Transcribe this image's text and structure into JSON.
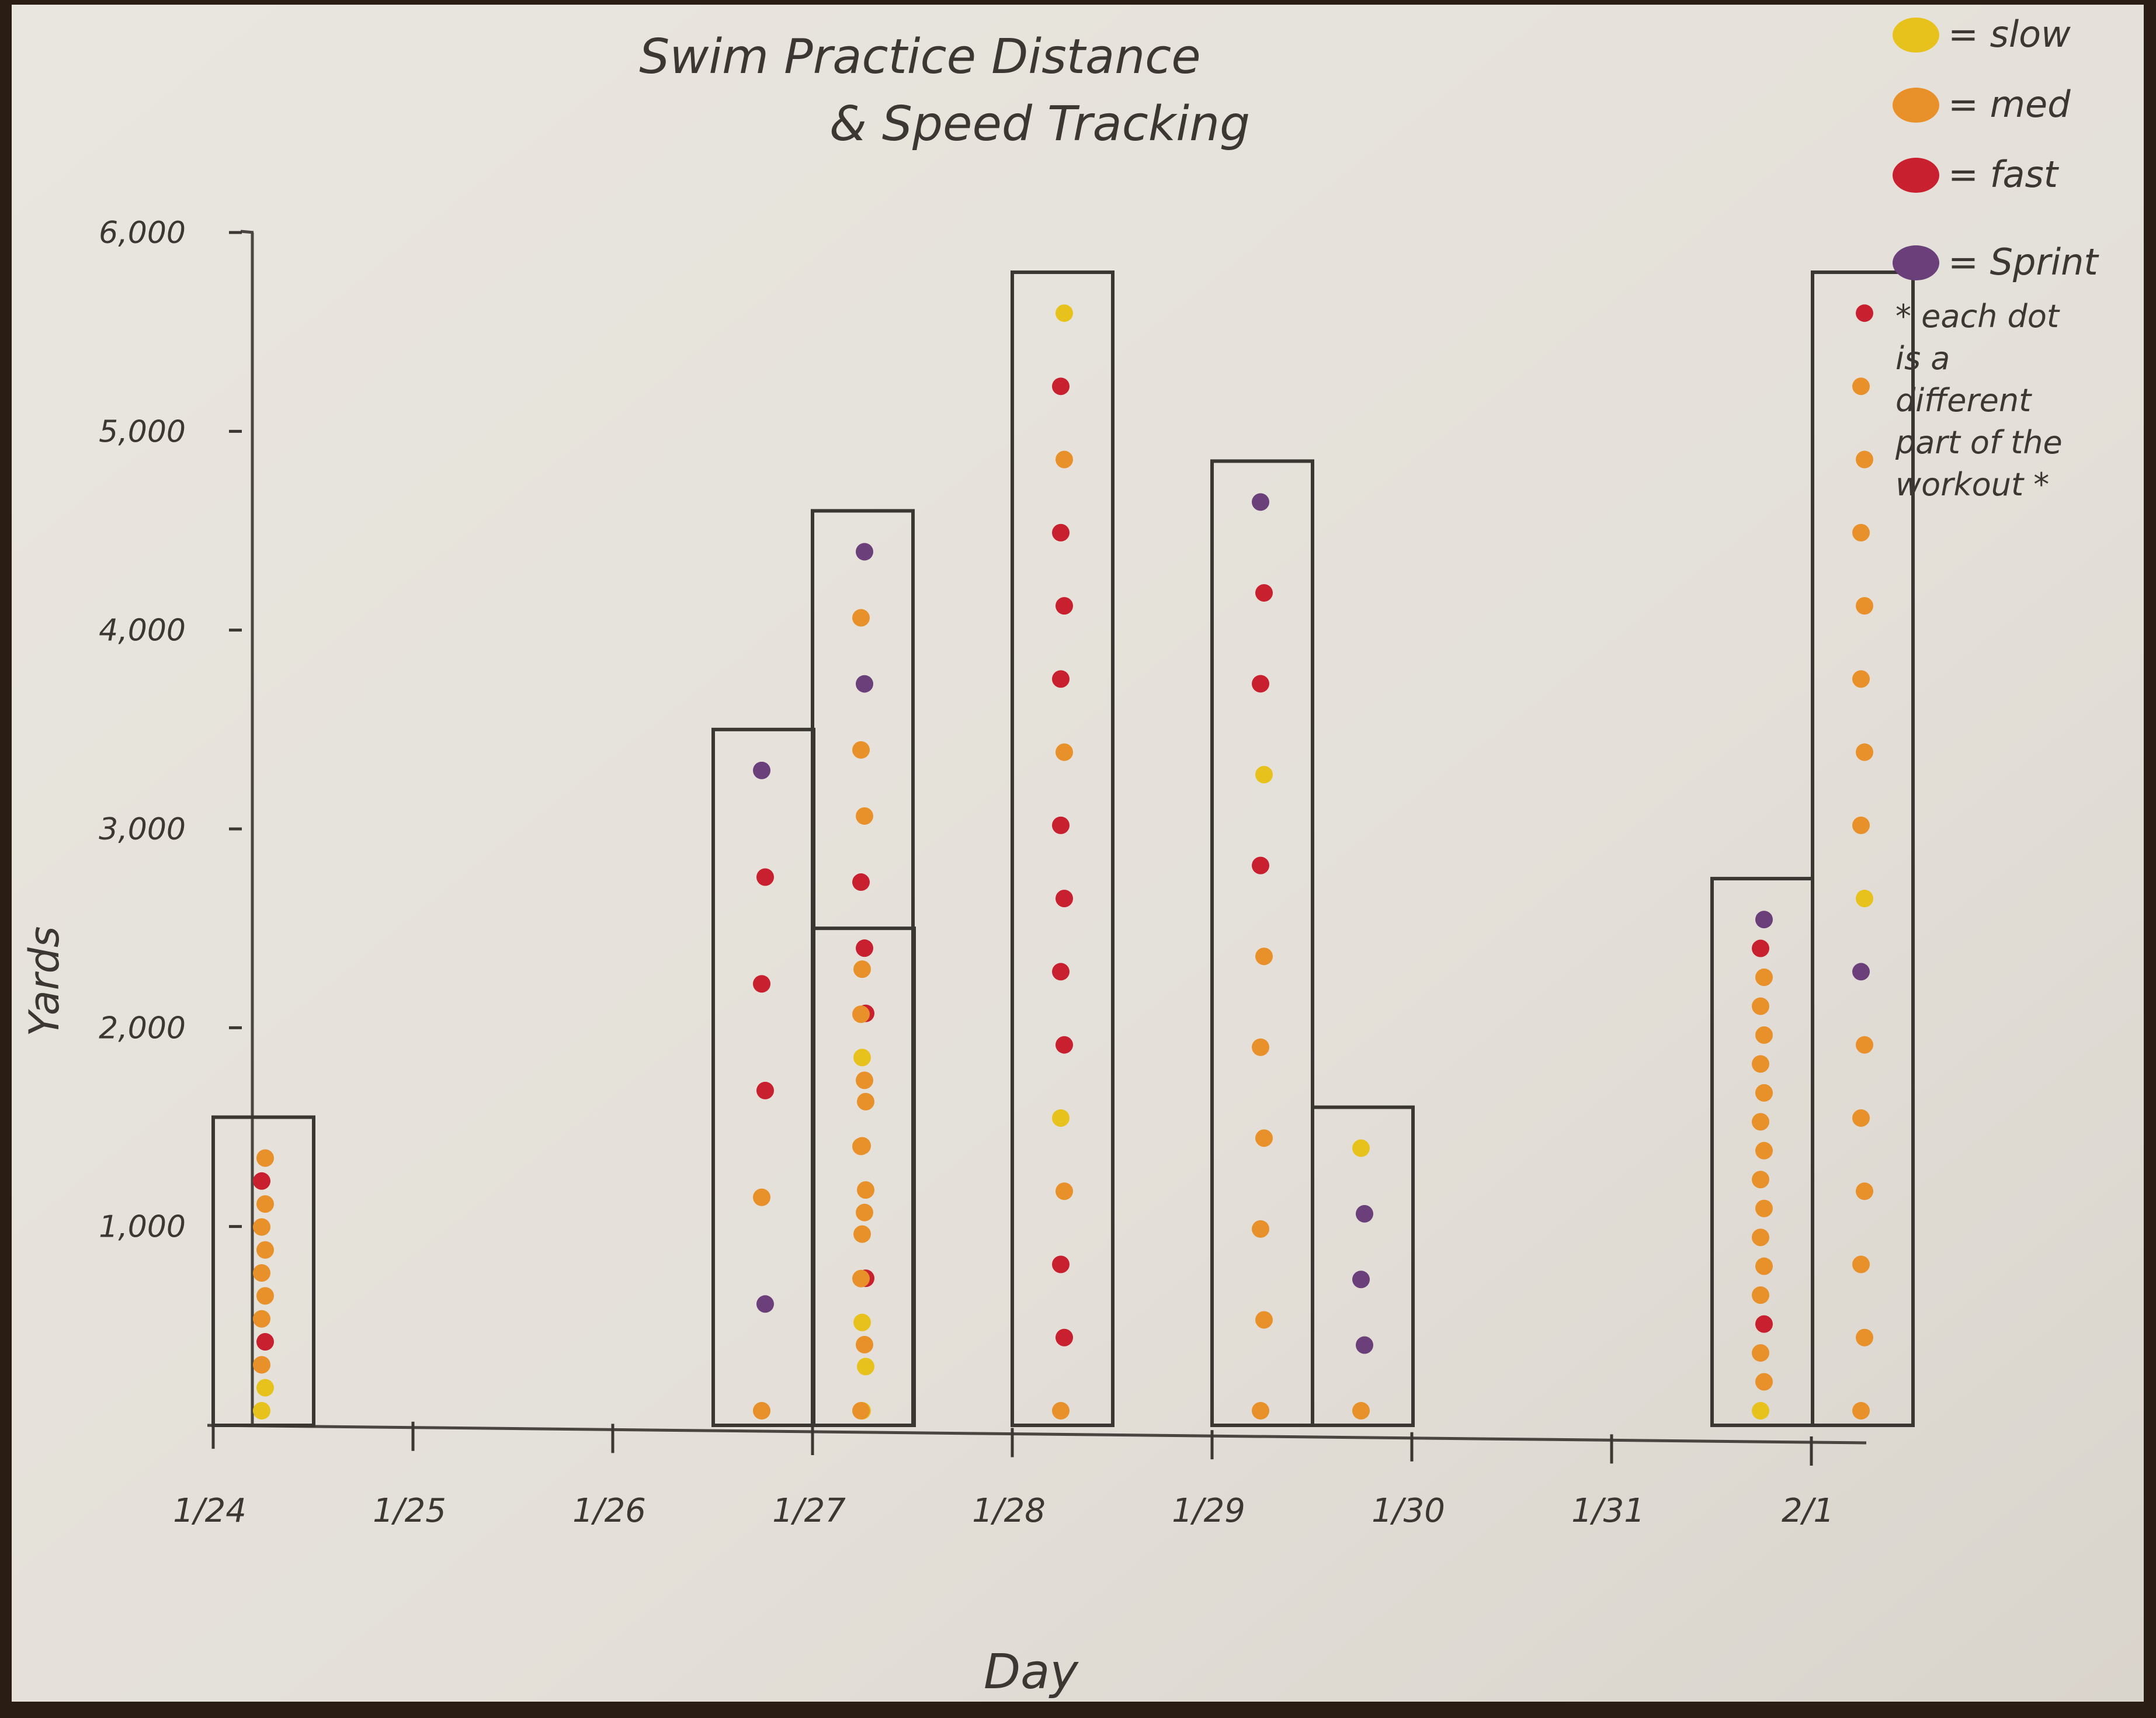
{
  "chart_data": {
    "type": "bar",
    "title_lines": [
      "Swim Practice Distance",
      "& Speed Tracking"
    ],
    "xlabel": "Day",
    "ylabel": "Yards",
    "ylim": [
      0,
      6000
    ],
    "y_ticks": [
      {
        "value": 1000,
        "label": "1,000"
      },
      {
        "value": 2000,
        "label": "2,000"
      },
      {
        "value": 3000,
        "label": "3,000"
      },
      {
        "value": 4000,
        "label": "4,000"
      },
      {
        "value": 5000,
        "label": "5,000"
      },
      {
        "value": 6000,
        "label": "6,000"
      }
    ],
    "x_ticks": [
      "1/24",
      "1/25",
      "1/26",
      "1/27",
      "1/28",
      "1/29",
      "1/30",
      "1/31",
      "2/1"
    ],
    "legend": {
      "placement": "top-right",
      "entries": [
        {
          "label": "= slow",
          "color": "#e8c21c"
        },
        {
          "label": "= med",
          "color": "#e8902a"
        },
        {
          "label": "= fast",
          "color": "#c8202e"
        },
        {
          "label": "= Sprint",
          "color": "#6a3f7a"
        }
      ],
      "note": [
        "* each dot",
        "is a",
        "different",
        "part of the",
        "workout *"
      ]
    },
    "bars": [
      {
        "category": "1/24",
        "slot": 0,
        "value": 1550,
        "dots": [
          "slow",
          "slow",
          "med",
          "fast",
          "med",
          "med",
          "med",
          "med",
          "med",
          "med",
          "fast",
          "med"
        ]
      },
      {
        "category": "1/26",
        "slot": 1,
        "value": 3500,
        "dots": [
          "med",
          "sprint",
          "med",
          "fast",
          "fast",
          "fast",
          "sprint"
        ]
      },
      {
        "category": "1/26",
        "slot": 2,
        "value": 2500,
        "dots": [
          "slow",
          "slow",
          "slow",
          "fast",
          "med",
          "med",
          "med",
          "med",
          "slow",
          "fast",
          "med"
        ]
      },
      {
        "category": "1/27",
        "slot": 0,
        "value": 4600,
        "dots": [
          "med",
          "med",
          "med",
          "med",
          "med",
          "med",
          "med",
          "fast",
          "fast",
          "med",
          "med",
          "sprint",
          "med",
          "sprint"
        ]
      },
      {
        "category": "1/28",
        "slot": 0,
        "value": 5800,
        "dots": [
          "med",
          "fast",
          "fast",
          "med",
          "slow",
          "fast",
          "fast",
          "fast",
          "fast",
          "med",
          "fast",
          "fast",
          "fast",
          "med",
          "fast",
          "slow"
        ]
      },
      {
        "category": "1/29",
        "slot": 0,
        "value": 4850,
        "dots": [
          "med",
          "med",
          "med",
          "med",
          "med",
          "med",
          "fast",
          "slow",
          "fast",
          "fast",
          "sprint"
        ]
      },
      {
        "category": "1/29",
        "slot": 1,
        "value": 1600,
        "dots": [
          "med",
          "sprint",
          "sprint",
          "sprint",
          "slow"
        ]
      },
      {
        "category": "1/31",
        "slot": 1,
        "value": 2750,
        "dots": [
          "slow",
          "med",
          "med",
          "fast",
          "med",
          "med",
          "med",
          "med",
          "med",
          "med",
          "med",
          "med",
          "med",
          "med",
          "med",
          "med",
          "fast",
          "sprint"
        ]
      },
      {
        "category": "1/31",
        "slot": 2,
        "value": 5800,
        "dots": [
          "med",
          "med",
          "med",
          "med",
          "med",
          "med",
          "sprint",
          "slow",
          "med",
          "med",
          "med",
          "med",
          "med",
          "med",
          "med",
          "fast"
        ]
      }
    ]
  }
}
